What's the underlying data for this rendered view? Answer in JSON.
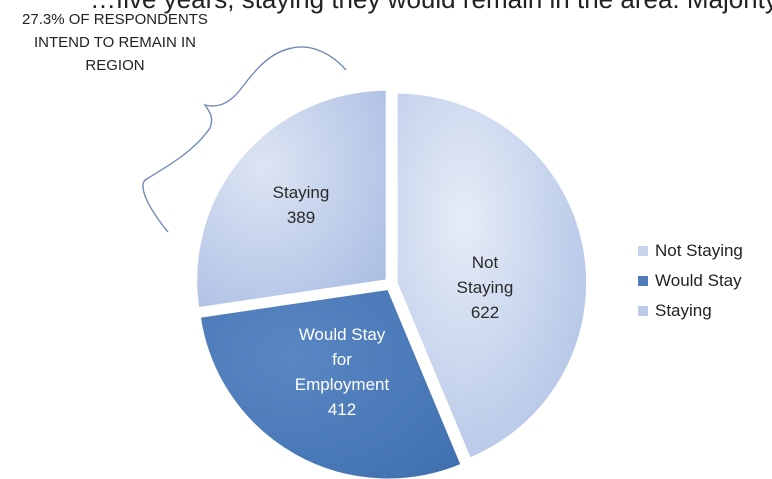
{
  "header_fragment": "…five years, staying they would remain in the area. Majority of",
  "callout": "27.3% OF RESPONDENTS INTEND TO REMAIN IN REGION",
  "chart_data": {
    "type": "pie",
    "slices": [
      {
        "label": "Not Staying",
        "value": 622,
        "color": "#c7d4ec"
      },
      {
        "label": "Would Stay for Employment",
        "value": 412,
        "color": "#4f7dbb"
      },
      {
        "label": "Staying",
        "value": 389,
        "color": "#bdcbe6"
      }
    ],
    "legend": {
      "position": "right",
      "items": [
        {
          "label": "Not Staying",
          "color": "#c7d4ec"
        },
        {
          "label": "Would Stay",
          "color": "#4f7dbb"
        },
        {
          "label": "Staying",
          "color": "#bdcbe6"
        }
      ]
    }
  }
}
